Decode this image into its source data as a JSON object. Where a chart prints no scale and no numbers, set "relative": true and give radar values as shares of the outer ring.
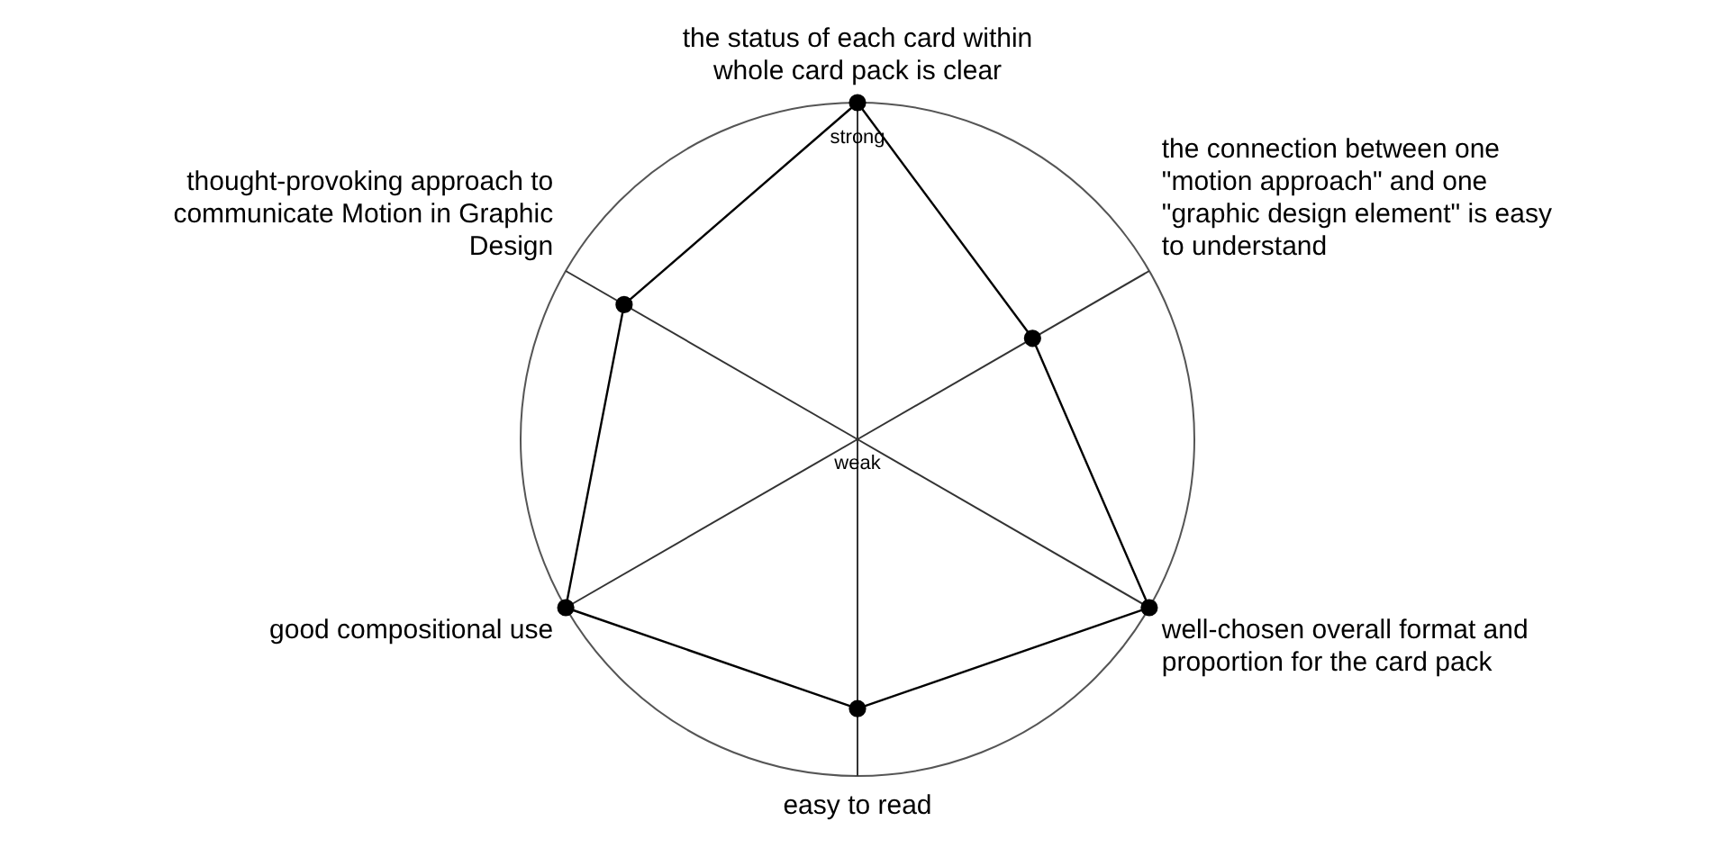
{
  "chart_data": {
    "type": "radar",
    "relative": true,
    "categories": [
      "the status of each card within whole card pack is clear",
      "the connection between one \"motion approach\" and one \"graphic design element\" is easy to understand",
      "well-chosen overall format and proportion for the card pack",
      "easy to read",
      "good compositional use",
      "thought-provoking approach to communicate Motion in Graphic Design"
    ],
    "series": [
      {
        "color": "#000000",
        "values": [
          1,
          0.6,
          1,
          0.8,
          1,
          0.8
        ]
      }
    ],
    "annotations": [
      "strong",
      "weak"
    ],
    "marker": "circle",
    "line_style": "solid",
    "legend": false
  }
}
